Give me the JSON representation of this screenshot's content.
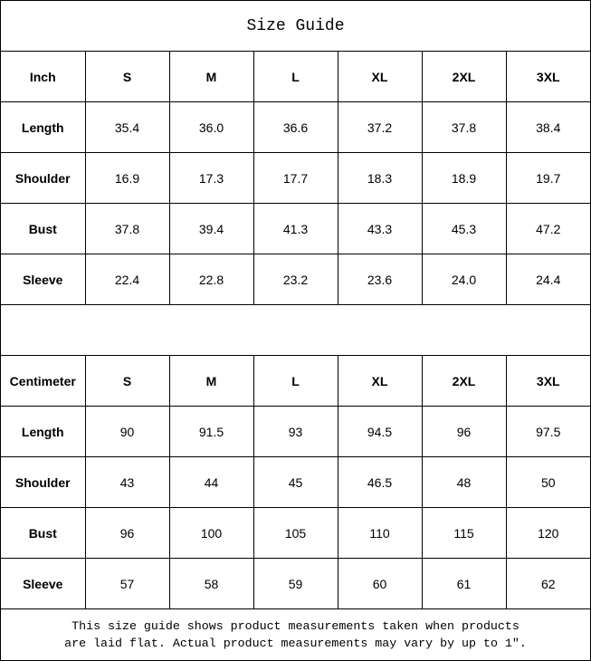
{
  "title": "Size Guide",
  "inch_table": {
    "header": [
      "Inch",
      "S",
      "M",
      "L",
      "XL",
      "2XL",
      "3XL"
    ],
    "rows": [
      [
        "Length",
        "35.4",
        "36.0",
        "36.6",
        "37.2",
        "37.8",
        "38.4"
      ],
      [
        "Shoulder",
        "16.9",
        "17.3",
        "17.7",
        "18.3",
        "18.9",
        "19.7"
      ],
      [
        "Bust",
        "37.8",
        "39.4",
        "41.3",
        "43.3",
        "45.3",
        "47.2"
      ],
      [
        "Sleeve",
        "22.4",
        "22.8",
        "23.2",
        "23.6",
        "24.0",
        "24.4"
      ]
    ]
  },
  "cm_table": {
    "header": [
      "Centimeter",
      "S",
      "M",
      "L",
      "XL",
      "2XL",
      "3XL"
    ],
    "rows": [
      [
        "Length",
        "90",
        "91.5",
        "93",
        "94.5",
        "96",
        "97.5"
      ],
      [
        "Shoulder",
        "43",
        "44",
        "45",
        "46.5",
        "48",
        "50"
      ],
      [
        "Bust",
        "96",
        "100",
        "105",
        "110",
        "115",
        "120"
      ],
      [
        "Sleeve",
        "57",
        "58",
        "59",
        "60",
        "61",
        "62"
      ]
    ]
  },
  "footer": {
    "line1": "This size guide shows product measurements taken when products",
    "line2": "are laid flat. Actual product measurements may vary by up to 1″."
  }
}
